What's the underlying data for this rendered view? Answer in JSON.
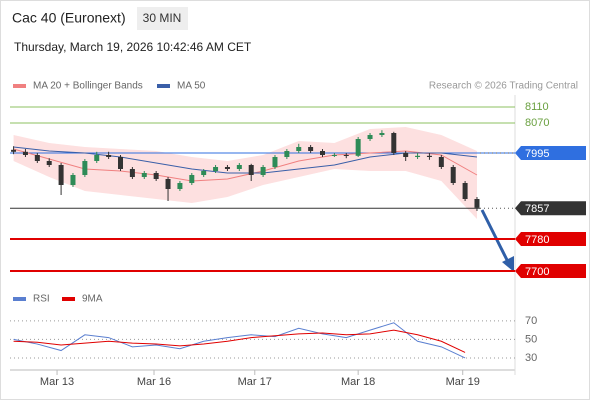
{
  "chart_data": {
    "type": "candlestick",
    "title": "Cac 40 (Euronext)",
    "timeframe": "30 MIN",
    "subtitle": "Thursday, March 19, 2026 10:42:46 AM CET",
    "copyright": "Research © 2026 Trading Central",
    "xlim": [
      -0.3,
      42.2
    ],
    "xticks": [
      {
        "value": 3.66,
        "label": "Mar 13"
      },
      {
        "value": 11.82,
        "label": "Mar 16"
      },
      {
        "value": 20.3,
        "label": "Mar 17"
      },
      {
        "value": 29.0,
        "label": "Mar 18"
      },
      {
        "value": 37.8,
        "label": "Mar 19"
      }
    ],
    "ylim": [
      7665,
      8140
    ],
    "up_color": "#2e8b57",
    "down_color": "#333333",
    "x": [
      0,
      1,
      2,
      3,
      4,
      5,
      6,
      7,
      8,
      9,
      10,
      11,
      12,
      13,
      14,
      15,
      16,
      17,
      18,
      19,
      20,
      21,
      22,
      23,
      24,
      25,
      26,
      27,
      28,
      29,
      30,
      31,
      32,
      33,
      34,
      35,
      36,
      37,
      38,
      39
    ],
    "open": [
      8003,
      7998,
      7990,
      7975,
      7965,
      7915,
      7940,
      7975,
      7990,
      7985,
      7955,
      7935,
      7945,
      7930,
      7905,
      7920,
      7940,
      7950,
      7960,
      7955,
      7965,
      7940,
      7960,
      7985,
      8000,
      8010,
      8000,
      7990,
      7990,
      7988,
      8030,
      8040,
      8045,
      7995,
      7985,
      7988,
      7985,
      7960,
      7920,
      7880
    ],
    "high": [
      8012,
      8005,
      7995,
      7982,
      7970,
      7945,
      7980,
      7998,
      7998,
      7990,
      7960,
      7950,
      7950,
      7935,
      7925,
      7945,
      7955,
      7965,
      7965,
      7970,
      7968,
      7965,
      7990,
      8005,
      8018,
      8015,
      8005,
      7995,
      7995,
      8035,
      8045,
      8052,
      8048,
      8000,
      7995,
      7995,
      7990,
      7965,
      7925,
      7885
    ],
    "low": [
      7992,
      7985,
      7970,
      7960,
      7890,
      7910,
      7935,
      7970,
      7980,
      7950,
      7930,
      7930,
      7925,
      7875,
      7900,
      7915,
      7935,
      7945,
      7950,
      7950,
      7925,
      7935,
      7955,
      7980,
      7995,
      7995,
      7985,
      7985,
      7982,
      7985,
      8025,
      8035,
      7990,
      7975,
      7980,
      7978,
      7955,
      7915,
      7875,
      7850
    ],
    "close": [
      7998,
      7990,
      7975,
      7965,
      7915,
      7940,
      7975,
      7990,
      7985,
      7955,
      7935,
      7945,
      7930,
      7905,
      7920,
      7940,
      7950,
      7960,
      7955,
      7965,
      7940,
      7960,
      7985,
      8000,
      8010,
      8000,
      7990,
      7990,
      7988,
      8030,
      8040,
      8045,
      7995,
      7985,
      7988,
      7985,
      7960,
      7920,
      7880,
      7858
    ],
    "indicator_x": [
      0,
      3,
      6,
      9,
      12,
      15,
      18,
      21,
      24,
      27,
      30,
      33,
      36,
      39
    ],
    "indicators": [
      {
        "name": "MA 20 + Bollinger Bands",
        "color": "#f08080",
        "band_color": "#fde0e0",
        "values": [
          8005,
          7980,
          7955,
          7950,
          7940,
          7925,
          7930,
          7950,
          7975,
          7990,
          7995,
          8000,
          7990,
          7940
        ],
        "upper": [
          8040,
          8020,
          8010,
          8005,
          8000,
          7985,
          7975,
          7990,
          8025,
          8020,
          8055,
          8060,
          8040,
          8000
        ],
        "lower": [
          7975,
          7935,
          7900,
          7890,
          7880,
          7870,
          7885,
          7915,
          7935,
          7955,
          7950,
          7950,
          7925,
          7830
        ]
      },
      {
        "name": "MA 50",
        "color": "#3a5fa8",
        "values": [
          8010,
          8000,
          7995,
          7985,
          7970,
          7955,
          7945,
          7945,
          7955,
          7965,
          7985,
          7995,
          7995,
          7985
        ]
      }
    ],
    "levels": [
      {
        "value": 8110,
        "color": "#8cc060",
        "boxed": false
      },
      {
        "value": 8070,
        "color": "#8cc060",
        "boxed": false
      },
      {
        "value": 7995,
        "color": "#2f6fe0",
        "boxed": true
      },
      {
        "value": 7857,
        "color": "#333333",
        "boxed": true,
        "dotted": true
      },
      {
        "value": 7780,
        "color": "#e00000",
        "boxed": true
      },
      {
        "value": 7700,
        "color": "#e00000",
        "boxed": true
      }
    ],
    "oscillator": {
      "ylim": [
        17,
        85
      ],
      "yticks": [
        30,
        50,
        70
      ],
      "x": [
        0,
        2,
        4,
        6,
        8,
        10,
        12,
        14,
        16,
        18,
        20,
        22,
        24,
        26,
        28,
        30,
        32,
        34,
        36,
        38
      ],
      "series": [
        {
          "name": "RSI",
          "color": "#5a7fd0",
          "values": [
            50,
            45,
            38,
            55,
            52,
            42,
            44,
            40,
            48,
            52,
            55,
            53,
            62,
            56,
            52,
            60,
            68,
            48,
            42,
            30
          ]
        },
        {
          "name": "9MA",
          "color": "#e00000",
          "values": [
            48,
            47,
            44,
            46,
            48,
            46,
            45,
            43,
            45,
            48,
            52,
            54,
            56,
            57,
            55,
            56,
            60,
            55,
            48,
            36
          ]
        }
      ]
    }
  }
}
